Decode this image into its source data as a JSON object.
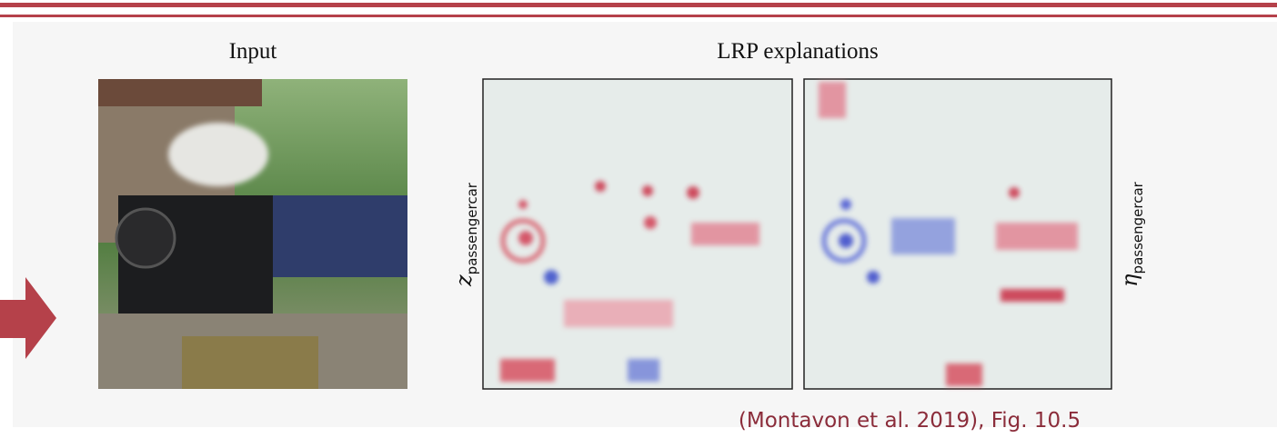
{
  "header": {
    "input_label": "Input",
    "explanations_label": "LRP explanations"
  },
  "heatmaps": [
    {
      "symbol": "z",
      "subscript": "passengercar"
    },
    {
      "symbol": "η",
      "subscript": "passengercar"
    }
  ],
  "citation": "(Montavon et al. 2019), Fig. 10.5"
}
